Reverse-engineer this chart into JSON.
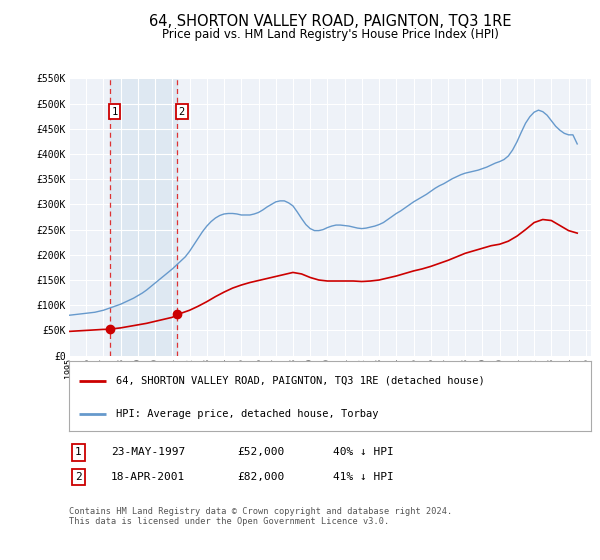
{
  "title": "64, SHORTON VALLEY ROAD, PAIGNTON, TQ3 1RE",
  "subtitle": "Price paid vs. HM Land Registry's House Price Index (HPI)",
  "title_fontsize": 10.5,
  "subtitle_fontsize": 8.5,
  "background_color": "#ffffff",
  "plot_bg_color": "#eef2f8",
  "grid_color": "#ffffff",
  "ylim": [
    0,
    550000
  ],
  "xlim_start": 1995.0,
  "xlim_end": 2025.3,
  "yticks": [
    0,
    50000,
    100000,
    150000,
    200000,
    250000,
    300000,
    350000,
    400000,
    450000,
    500000,
    550000
  ],
  "ytick_labels": [
    "£0",
    "£50K",
    "£100K",
    "£150K",
    "£200K",
    "£250K",
    "£300K",
    "£350K",
    "£400K",
    "£450K",
    "£500K",
    "£550K"
  ],
  "xticks": [
    1995,
    1996,
    1997,
    1998,
    1999,
    2000,
    2001,
    2002,
    2003,
    2004,
    2005,
    2006,
    2007,
    2008,
    2009,
    2010,
    2011,
    2012,
    2013,
    2014,
    2015,
    2016,
    2017,
    2018,
    2019,
    2020,
    2021,
    2022,
    2023,
    2024,
    2025
  ],
  "purchase1_x": 1997.389,
  "purchase1_y": 52000,
  "purchase2_x": 2001.296,
  "purchase2_y": 82000,
  "red_line_color": "#cc0000",
  "blue_line_color": "#6699cc",
  "dashed_line_color": "#dd3333",
  "marker_color": "#cc0000",
  "legend_label_red": "64, SHORTON VALLEY ROAD, PAIGNTON, TQ3 1RE (detached house)",
  "legend_label_blue": "HPI: Average price, detached house, Torbay",
  "table_row1_num": "1",
  "table_row1_date": "23-MAY-1997",
  "table_row1_price": "£52,000",
  "table_row1_hpi": "40% ↓ HPI",
  "table_row2_num": "2",
  "table_row2_date": "18-APR-2001",
  "table_row2_price": "£82,000",
  "table_row2_hpi": "41% ↓ HPI",
  "footer": "Contains HM Land Registry data © Crown copyright and database right 2024.\nThis data is licensed under the Open Government Licence v3.0.",
  "hpi_x": [
    1995.0,
    1995.25,
    1995.5,
    1995.75,
    1996.0,
    1996.25,
    1996.5,
    1996.75,
    1997.0,
    1997.25,
    1997.5,
    1997.75,
    1998.0,
    1998.25,
    1998.5,
    1998.75,
    1999.0,
    1999.25,
    1999.5,
    1999.75,
    2000.0,
    2000.25,
    2000.5,
    2000.75,
    2001.0,
    2001.25,
    2001.5,
    2001.75,
    2002.0,
    2002.25,
    2002.5,
    2002.75,
    2003.0,
    2003.25,
    2003.5,
    2003.75,
    2004.0,
    2004.25,
    2004.5,
    2004.75,
    2005.0,
    2005.25,
    2005.5,
    2005.75,
    2006.0,
    2006.25,
    2006.5,
    2006.75,
    2007.0,
    2007.25,
    2007.5,
    2007.75,
    2008.0,
    2008.25,
    2008.5,
    2008.75,
    2009.0,
    2009.25,
    2009.5,
    2009.75,
    2010.0,
    2010.25,
    2010.5,
    2010.75,
    2011.0,
    2011.25,
    2011.5,
    2011.75,
    2012.0,
    2012.25,
    2012.5,
    2012.75,
    2013.0,
    2013.25,
    2013.5,
    2013.75,
    2014.0,
    2014.25,
    2014.5,
    2014.75,
    2015.0,
    2015.25,
    2015.5,
    2015.75,
    2016.0,
    2016.25,
    2016.5,
    2016.75,
    2017.0,
    2017.25,
    2017.5,
    2017.75,
    2018.0,
    2018.25,
    2018.5,
    2018.75,
    2019.0,
    2019.25,
    2019.5,
    2019.75,
    2020.0,
    2020.25,
    2020.5,
    2020.75,
    2021.0,
    2021.25,
    2021.5,
    2021.75,
    2022.0,
    2022.25,
    2022.5,
    2022.75,
    2023.0,
    2023.25,
    2023.5,
    2023.75,
    2024.0,
    2024.25,
    2024.5
  ],
  "hpi_y": [
    80000,
    81000,
    82000,
    83000,
    84000,
    85000,
    86000,
    88000,
    90000,
    93000,
    96000,
    99000,
    102000,
    106000,
    110000,
    114000,
    119000,
    124000,
    130000,
    137000,
    144000,
    151000,
    158000,
    165000,
    172000,
    180000,
    188000,
    196000,
    207000,
    220000,
    233000,
    246000,
    257000,
    266000,
    273000,
    278000,
    281000,
    282000,
    282000,
    281000,
    279000,
    279000,
    279000,
    281000,
    284000,
    289000,
    295000,
    300000,
    305000,
    307000,
    307000,
    303000,
    297000,
    285000,
    272000,
    260000,
    252000,
    248000,
    248000,
    250000,
    254000,
    257000,
    259000,
    259000,
    258000,
    257000,
    255000,
    253000,
    252000,
    253000,
    255000,
    257000,
    260000,
    264000,
    270000,
    276000,
    282000,
    287000,
    293000,
    299000,
    305000,
    310000,
    315000,
    320000,
    326000,
    332000,
    337000,
    341000,
    346000,
    351000,
    355000,
    359000,
    362000,
    364000,
    366000,
    368000,
    371000,
    374000,
    378000,
    382000,
    385000,
    389000,
    396000,
    408000,
    424000,
    443000,
    461000,
    474000,
    483000,
    487000,
    484000,
    477000,
    466000,
    455000,
    447000,
    441000,
    438000,
    438000,
    420000
  ],
  "red_line_x": [
    1995.0,
    1995.5,
    1996.0,
    1996.5,
    1997.0,
    1997.389,
    1997.5,
    1998.0,
    1998.5,
    1999.0,
    1999.5,
    2000.0,
    2000.5,
    2001.0,
    2001.296,
    2001.5,
    2002.0,
    2002.5,
    2003.0,
    2003.5,
    2004.0,
    2004.5,
    2005.0,
    2005.5,
    2006.0,
    2006.5,
    2007.0,
    2007.5,
    2008.0,
    2008.5,
    2009.0,
    2009.5,
    2010.0,
    2010.5,
    2011.0,
    2011.5,
    2012.0,
    2012.5,
    2013.0,
    2013.5,
    2014.0,
    2014.5,
    2015.0,
    2015.5,
    2016.0,
    2016.5,
    2017.0,
    2017.5,
    2018.0,
    2018.5,
    2019.0,
    2019.5,
    2020.0,
    2020.5,
    2021.0,
    2021.5,
    2022.0,
    2022.5,
    2023.0,
    2023.5,
    2024.0,
    2024.5
  ],
  "red_line_y": [
    48000,
    49000,
    50000,
    51000,
    52000,
    52000,
    53000,
    55000,
    58000,
    61000,
    64000,
    68000,
    72000,
    76000,
    82000,
    84000,
    90000,
    98000,
    107000,
    117000,
    126000,
    134000,
    140000,
    145000,
    149000,
    153000,
    157000,
    161000,
    165000,
    162000,
    155000,
    150000,
    148000,
    148000,
    148000,
    148000,
    147000,
    148000,
    150000,
    154000,
    158000,
    163000,
    168000,
    172000,
    177000,
    183000,
    189000,
    196000,
    203000,
    208000,
    213000,
    218000,
    221000,
    227000,
    237000,
    250000,
    264000,
    270000,
    268000,
    258000,
    248000,
    243000
  ]
}
